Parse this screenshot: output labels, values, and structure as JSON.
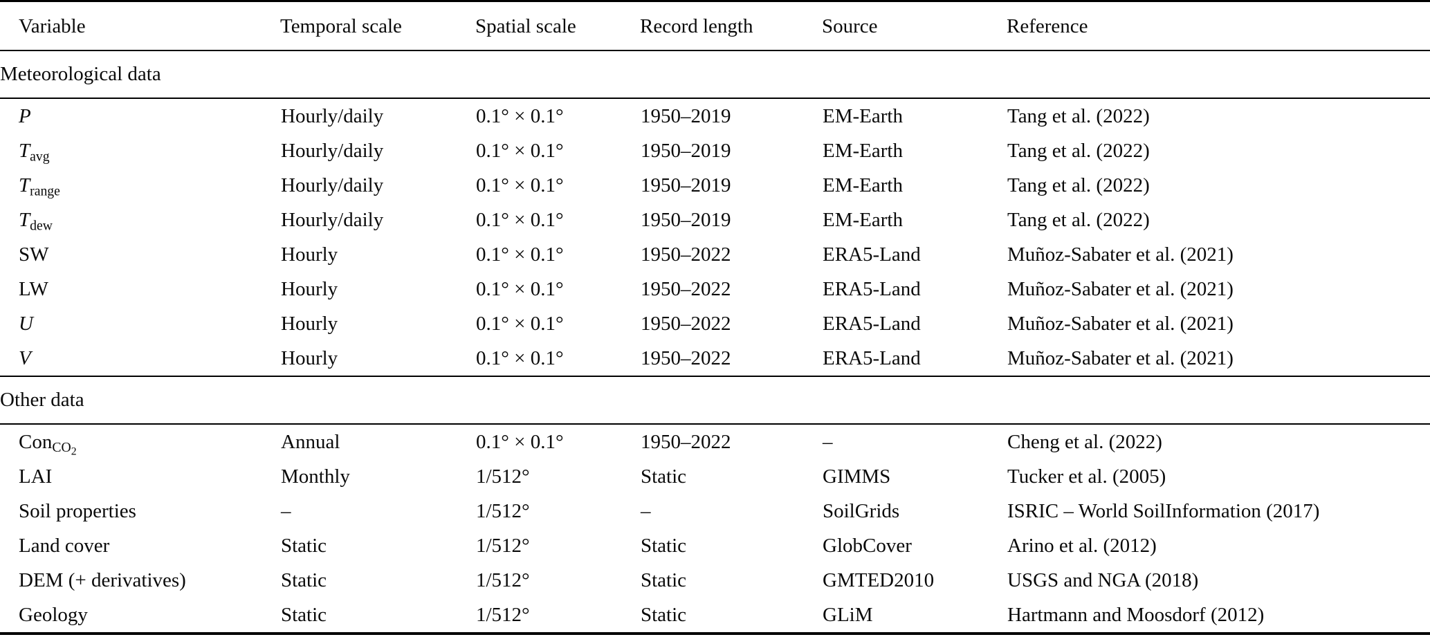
{
  "table": {
    "columns": [
      {
        "key": "variable",
        "label": "Variable"
      },
      {
        "key": "temporal",
        "label": "Temporal scale"
      },
      {
        "key": "spatial",
        "label": "Spatial scale"
      },
      {
        "key": "record",
        "label": "Record length"
      },
      {
        "key": "source",
        "label": "Source"
      },
      {
        "key": "reference",
        "label": "Reference"
      }
    ],
    "sections": [
      {
        "title": "Meteorological data",
        "rows": [
          {
            "variable": {
              "base": "P",
              "italic": true
            },
            "temporal": "Hourly/daily",
            "spatial": "0.1° × 0.1°",
            "record": "1950–2019",
            "source": "EM-Earth",
            "reference": "Tang et al. (2022)"
          },
          {
            "variable": {
              "base": "T",
              "italic": true,
              "sub": "avg"
            },
            "temporal": "Hourly/daily",
            "spatial": "0.1° × 0.1°",
            "record": "1950–2019",
            "source": "EM-Earth",
            "reference": "Tang et al. (2022)"
          },
          {
            "variable": {
              "base": "T",
              "italic": true,
              "sub": "range"
            },
            "temporal": "Hourly/daily",
            "spatial": "0.1° × 0.1°",
            "record": "1950–2019",
            "source": "EM-Earth",
            "reference": "Tang et al. (2022)"
          },
          {
            "variable": {
              "base": "T",
              "italic": true,
              "sub": "dew"
            },
            "temporal": "Hourly/daily",
            "spatial": "0.1° × 0.1°",
            "record": "1950–2019",
            "source": "EM-Earth",
            "reference": "Tang et al. (2022)"
          },
          {
            "variable": {
              "base": "SW"
            },
            "temporal": "Hourly",
            "spatial": "0.1° × 0.1°",
            "record": "1950–2022",
            "source": "ERA5-Land",
            "reference": "Muñoz-Sabater et al. (2021)"
          },
          {
            "variable": {
              "base": "LW"
            },
            "temporal": "Hourly",
            "spatial": "0.1° × 0.1°",
            "record": "1950–2022",
            "source": "ERA5-Land",
            "reference": "Muñoz-Sabater et al. (2021)"
          },
          {
            "variable": {
              "base": "U",
              "italic": true
            },
            "temporal": "Hourly",
            "spatial": "0.1° × 0.1°",
            "record": "1950–2022",
            "source": "ERA5-Land",
            "reference": "Muñoz-Sabater et al. (2021)"
          },
          {
            "variable": {
              "base": "V",
              "italic": true
            },
            "temporal": "Hourly",
            "spatial": "0.1° × 0.1°",
            "record": "1950–2022",
            "source": "ERA5-Land",
            "reference": "Muñoz-Sabater et al. (2021)"
          }
        ]
      },
      {
        "title": "Other data",
        "rows": [
          {
            "variable": {
              "base": "Con",
              "sub": "CO",
              "subsub": "2"
            },
            "temporal": "Annual",
            "spatial": "0.1° × 0.1°",
            "record": "1950–2022",
            "source": "–",
            "reference": "Cheng et al. (2022)"
          },
          {
            "variable": {
              "base": "LAI"
            },
            "temporal": "Monthly",
            "spatial": "1/512°",
            "record": "Static",
            "source": "GIMMS",
            "reference": "Tucker et al. (2005)"
          },
          {
            "variable": {
              "base": "Soil properties"
            },
            "temporal": "–",
            "spatial": "1/512°",
            "record": "–",
            "source": "SoilGrids",
            "reference": "ISRIC – World SoilInformation (2017)"
          },
          {
            "variable": {
              "base": "Land cover"
            },
            "temporal": "Static",
            "spatial": "1/512°",
            "record": "Static",
            "source": "GlobCover",
            "reference": "Arino et al. (2012)"
          },
          {
            "variable": {
              "base": "DEM (+ derivatives)"
            },
            "temporal": "Static",
            "spatial": "1/512°",
            "record": "Static",
            "source": "GMTED2010",
            "reference": "USGS and NGA (2018)"
          },
          {
            "variable": {
              "base": "Geology"
            },
            "temporal": "Static",
            "spatial": "1/512°",
            "record": "Static",
            "source": "GLiM",
            "reference": "Hartmann and Moosdorf (2012)"
          }
        ]
      }
    ]
  }
}
